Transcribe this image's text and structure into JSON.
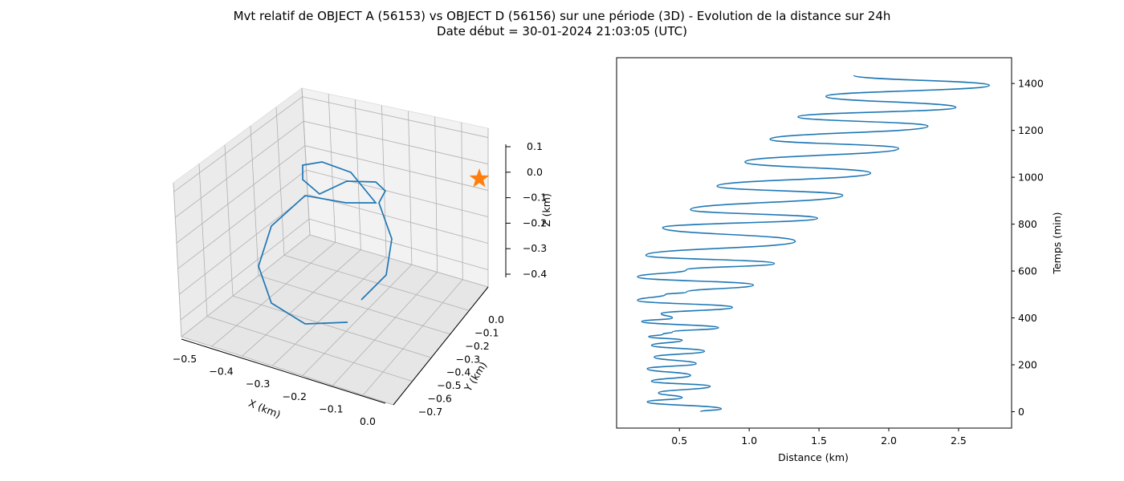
{
  "title_line1": "Mvt relatif de OBJECT A (56153) vs OBJECT D (56156) sur une période (3D) - Evolution de la distance sur 24h",
  "title_line2": "Date début = 30-01-2024 21:03:05 (UTC)",
  "colors": {
    "series": "#1f77b4",
    "marker": "#ff7f0e",
    "pane": "#f2f2f2",
    "grid": "#b0b0b0"
  },
  "chart_data": [
    {
      "type": "line3d",
      "xlabel": "X (km)",
      "ylabel": "Y (km)",
      "zlabel": "Z (km)",
      "x_ticks": [
        "−0.5",
        "−0.4",
        "−0.3",
        "−0.2",
        "−0.1",
        "0.0"
      ],
      "y_ticks": [
        "0.0",
        "−0.1",
        "−0.2",
        "−0.3",
        "−0.4",
        "−0.5",
        "−0.6",
        "−0.7"
      ],
      "z_ticks": [
        "0.1",
        "0.0",
        "−0.1",
        "−0.2",
        "−0.3",
        "−0.4"
      ],
      "xlim": [
        -0.5,
        0.0
      ],
      "ylim": [
        -0.72,
        0.05
      ],
      "zlim": [
        -0.47,
        0.12
      ],
      "grid": true,
      "marker": {
        "symbol": "star",
        "x": 0.0,
        "y": 0.0,
        "z": 0.0
      }
    },
    {
      "type": "line",
      "xlabel": "Distance (km)",
      "ylabel": "Temps (min)",
      "y_axis_side": "right",
      "xlim": [
        0.05,
        2.88
      ],
      "ylim": [
        -70,
        1510
      ],
      "x_ticks": [
        "0.5",
        "1.0",
        "1.5",
        "2.0",
        "2.5"
      ],
      "y_ticks": [
        "0",
        "200",
        "400",
        "600",
        "800",
        "1000",
        "1200",
        "1400"
      ],
      "grid": false,
      "series": [
        {
          "points": [
            [
              0.65,
              0
            ],
            [
              0.8,
              12
            ],
            [
              0.27,
              42
            ],
            [
              0.52,
              60
            ],
            [
              0.35,
              80
            ],
            [
              0.72,
              108
            ],
            [
              0.3,
              130
            ],
            [
              0.58,
              155
            ],
            [
              0.27,
              183
            ],
            [
              0.62,
              205
            ],
            [
              0.32,
              233
            ],
            [
              0.68,
              258
            ],
            [
              0.3,
              283
            ],
            [
              0.52,
              305
            ],
            [
              0.28,
              320
            ],
            [
              0.38,
              330
            ],
            [
              0.45,
              340
            ],
            [
              0.78,
              358
            ],
            [
              0.23,
              385
            ],
            [
              0.45,
              400
            ],
            [
              0.37,
              418
            ],
            [
              0.88,
              445
            ],
            [
              0.2,
              475
            ],
            [
              0.4,
              500
            ],
            [
              0.55,
              510
            ],
            [
              1.03,
              540
            ],
            [
              0.2,
              575
            ],
            [
              0.55,
              605
            ],
            [
              1.18,
              632
            ],
            [
              0.26,
              667
            ],
            [
              1.33,
              727
            ],
            [
              0.38,
              785
            ],
            [
              1.49,
              825
            ],
            [
              0.58,
              862
            ],
            [
              1.67,
              923
            ],
            [
              0.77,
              962
            ],
            [
              1.87,
              1018
            ],
            [
              0.97,
              1065
            ],
            [
              2.07,
              1123
            ],
            [
              1.15,
              1162
            ],
            [
              2.28,
              1218
            ],
            [
              1.35,
              1258
            ],
            [
              2.48,
              1298
            ],
            [
              1.55,
              1345
            ],
            [
              2.72,
              1392
            ],
            [
              1.75,
              1435
            ]
          ]
        }
      ]
    }
  ]
}
